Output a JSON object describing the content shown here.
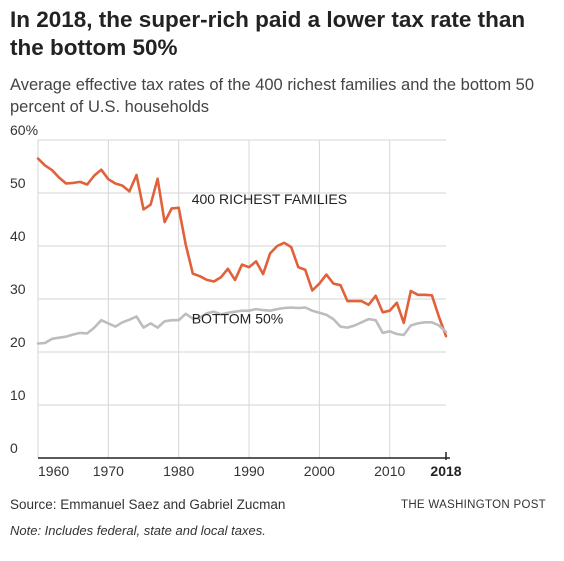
{
  "header": {
    "title": "In 2018, the super-rich paid a lower tax rate than the bottom 50%",
    "subtitle": "Average effective tax rates of the 400 richest families and the bottom 50 percent of U.S. households"
  },
  "footer": {
    "source": "Source: Emmanuel Saez and Gabriel Zucman",
    "credit": "THE WASHINGTON POST",
    "note": "Note: Includes federal, state and local taxes."
  },
  "colors": {
    "top400": "#e0613a",
    "bottom50": "#bdbdbd",
    "grid": "#d6d6d6",
    "axis": "#222222"
  },
  "chart_data": {
    "type": "line",
    "xlim": [
      1960,
      2018
    ],
    "ylim": [
      0,
      60
    ],
    "grid": true,
    "x_ticks": [
      1960,
      1970,
      1980,
      1990,
      2000,
      2010
    ],
    "x_tick_labels": [
      "1960",
      "1970",
      "1980",
      "1990",
      "2000",
      "2010"
    ],
    "x_final_tick": 2018,
    "x_final_tick_label": "2018",
    "y_ticks": [
      0,
      10,
      20,
      30,
      40,
      50,
      60
    ],
    "y_tick_labels": [
      "0",
      "10",
      "20",
      "30",
      "40",
      "50",
      "60%"
    ],
    "series": [
      {
        "name": "400 RICHEST FAMILIES",
        "label_at": [
          1981,
          46
        ],
        "x": [
          1960,
          1961,
          1962,
          1963,
          1964,
          1965,
          1966,
          1967,
          1968,
          1969,
          1970,
          1971,
          1972,
          1973,
          1974,
          1975,
          1976,
          1977,
          1978,
          1979,
          1980,
          1981,
          1982,
          1983,
          1984,
          1985,
          1986,
          1987,
          1988,
          1989,
          1990,
          1991,
          1992,
          1993,
          1994,
          1995,
          1996,
          1997,
          1998,
          1999,
          2000,
          2001,
          2002,
          2003,
          2004,
          2005,
          2006,
          2007,
          2008,
          2009,
          2010,
          2011,
          2012,
          2013,
          2014,
          2015,
          2016,
          2017,
          2018
        ],
        "values": [
          56.5,
          55.2,
          54.3,
          52.9,
          51.8,
          51.9,
          52.1,
          51.6,
          53.3,
          54.4,
          52.6,
          51.8,
          51.4,
          50.3,
          53.4,
          46.9,
          47.8,
          52.7,
          44.5,
          47.1,
          47.2,
          40.3,
          34.8,
          34.3,
          33.6,
          33.3,
          34.1,
          35.7,
          33.6,
          36.5,
          36.0,
          37.1,
          34.7,
          38.6,
          40.0,
          40.6,
          39.8,
          36.0,
          35.5,
          31.6,
          32.9,
          34.6,
          32.9,
          32.6,
          29.6,
          29.6,
          29.6,
          28.9,
          30.6,
          27.5,
          27.8,
          29.3,
          25.5,
          31.5,
          30.8,
          30.8,
          30.7,
          26.6,
          23.0
        ]
      },
      {
        "name": "BOTTOM 50%",
        "label_at": [
          1981,
          23.5
        ],
        "x": [
          1960,
          1961,
          1962,
          1963,
          1964,
          1965,
          1966,
          1967,
          1968,
          1969,
          1970,
          1971,
          1972,
          1973,
          1974,
          1975,
          1976,
          1977,
          1978,
          1979,
          1980,
          1981,
          1982,
          1983,
          1984,
          1985,
          1986,
          1987,
          1988,
          1989,
          1990,
          1991,
          1992,
          1993,
          1994,
          1995,
          1996,
          1997,
          1998,
          1999,
          2000,
          2001,
          2002,
          2003,
          2004,
          2005,
          2006,
          2007,
          2008,
          2009,
          2010,
          2011,
          2012,
          2013,
          2014,
          2015,
          2016,
          2017,
          2018
        ],
        "values": [
          21.6,
          21.7,
          22.5,
          22.7,
          22.9,
          23.3,
          23.6,
          23.5,
          24.6,
          26.0,
          25.4,
          24.8,
          25.6,
          26.1,
          26.7,
          24.6,
          25.4,
          24.6,
          25.8,
          26.0,
          26.0,
          27.2,
          26.3,
          26.5,
          27.3,
          27.6,
          27.1,
          27.4,
          27.6,
          27.8,
          27.8,
          28.1,
          27.9,
          27.8,
          28.1,
          28.3,
          28.4,
          28.3,
          28.4,
          27.8,
          27.4,
          27.0,
          26.2,
          24.8,
          24.6,
          25.0,
          25.6,
          26.2,
          26.0,
          23.6,
          23.9,
          23.4,
          23.2,
          25.0,
          25.4,
          25.6,
          25.6,
          25.0,
          23.8
        ]
      }
    ]
  }
}
